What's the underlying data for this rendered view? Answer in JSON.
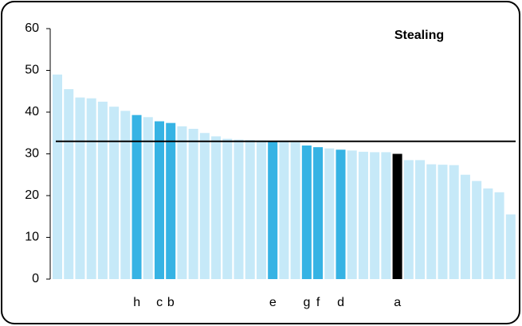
{
  "chart_data": {
    "type": "bar",
    "title": "Stealing",
    "categories": [
      null,
      null,
      null,
      null,
      null,
      null,
      null,
      "h",
      null,
      "c",
      "b",
      null,
      null,
      null,
      null,
      null,
      null,
      null,
      null,
      "e",
      null,
      null,
      "g",
      "f",
      null,
      "d",
      null,
      null,
      null,
      null,
      "a",
      null,
      null,
      null,
      null,
      null,
      null,
      null,
      null,
      null,
      null
    ],
    "values": [
      49,
      45.5,
      43.5,
      43.3,
      42.5,
      41.3,
      40.3,
      39.3,
      38.8,
      37.8,
      37.4,
      36.6,
      36,
      35,
      34.2,
      33.6,
      33.4,
      33.3,
      33.2,
      33,
      33,
      32.8,
      32,
      31.6,
      31.3,
      31,
      30.8,
      30.5,
      30.4,
      30.4,
      30,
      28.5,
      28.5,
      27.5,
      27.4,
      27.3,
      25,
      23.5,
      21.7,
      20.8,
      15.5
    ],
    "colors": [
      "#c6e9f8",
      "#c6e9f8",
      "#c6e9f8",
      "#c6e9f8",
      "#c6e9f8",
      "#c6e9f8",
      "#c6e9f8",
      "#36b3e4",
      "#c6e9f8",
      "#36b3e4",
      "#36b3e4",
      "#c6e9f8",
      "#c6e9f8",
      "#c6e9f8",
      "#c6e9f8",
      "#c6e9f8",
      "#c6e9f8",
      "#c6e9f8",
      "#c6e9f8",
      "#36b3e4",
      "#c6e9f8",
      "#c6e9f8",
      "#36b3e4",
      "#36b3e4",
      "#c6e9f8",
      "#36b3e4",
      "#c6e9f8",
      "#c6e9f8",
      "#c6e9f8",
      "#c6e9f8",
      "#000000",
      "#c6e9f8",
      "#c6e9f8",
      "#c6e9f8",
      "#c6e9f8",
      "#c6e9f8",
      "#c6e9f8",
      "#c6e9f8",
      "#c6e9f8",
      "#c6e9f8",
      "#c6e9f8"
    ],
    "reference_line": 33,
    "ylim": [
      0,
      60
    ],
    "yticks": [
      0,
      10,
      20,
      30,
      40,
      50,
      60
    ],
    "grid": false
  }
}
